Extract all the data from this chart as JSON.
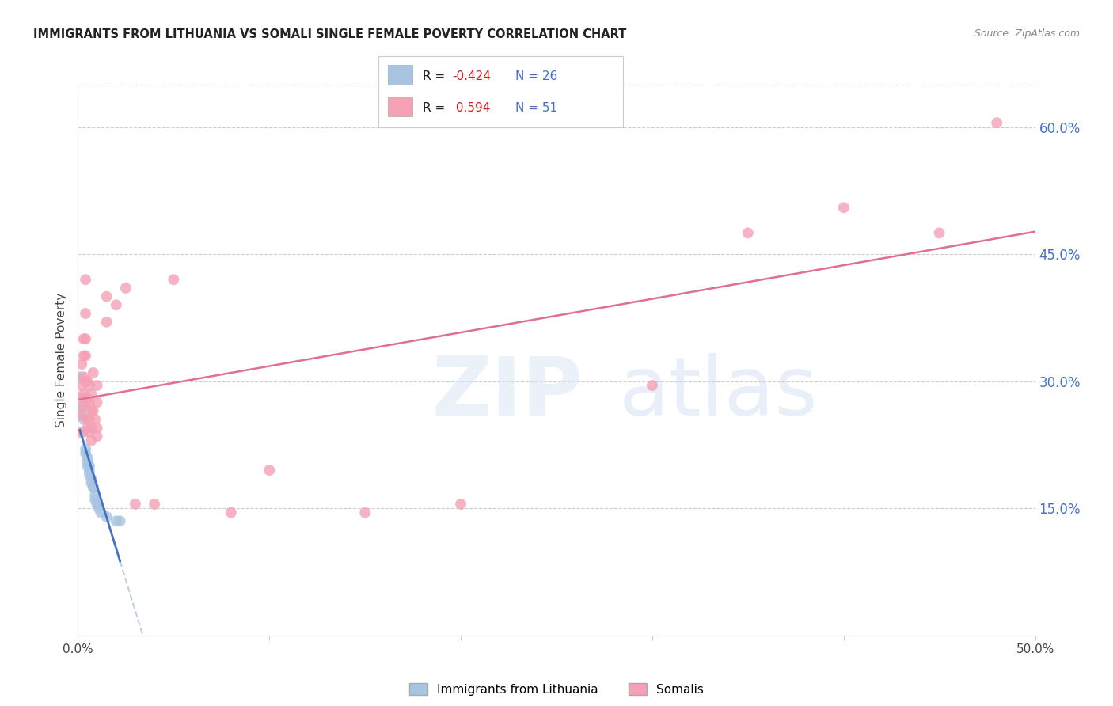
{
  "title": "IMMIGRANTS FROM LITHUANIA VS SOMALI SINGLE FEMALE POVERTY CORRELATION CHART",
  "source": "Source: ZipAtlas.com",
  "ylabel": "Single Female Poverty",
  "xlim": [
    0.0,
    50.0
  ],
  "ylim": [
    0.0,
    65.0
  ],
  "ytick_values": [
    15.0,
    30.0,
    45.0,
    60.0
  ],
  "xtick_values": [
    0.0,
    10.0,
    20.0,
    30.0,
    40.0,
    50.0
  ],
  "legend_label1": "Immigrants from Lithuania",
  "legend_label2": "Somalis",
  "R1": -0.424,
  "N1": 26,
  "R2": 0.594,
  "N2": 51,
  "color_blue": "#a8c4e0",
  "color_pink": "#f4a0b5",
  "line_blue": "#4472c4",
  "line_pink": "#e07090",
  "right_tick_color": "#4472c4",
  "grid_color": "#cccccc",
  "title_color": "#222222",
  "source_color": "#888888",
  "background_color": "#ffffff",
  "blue_scatter": [
    [
      0.1,
      30.5
    ],
    [
      0.2,
      27.0
    ],
    [
      0.2,
      26.0
    ],
    [
      0.3,
      25.5
    ],
    [
      0.3,
      24.0
    ],
    [
      0.4,
      22.0
    ],
    [
      0.4,
      21.5
    ],
    [
      0.5,
      21.0
    ],
    [
      0.5,
      20.5
    ],
    [
      0.5,
      20.0
    ],
    [
      0.6,
      20.0
    ],
    [
      0.6,
      19.5
    ],
    [
      0.6,
      19.0
    ],
    [
      0.7,
      18.5
    ],
    [
      0.7,
      18.0
    ],
    [
      0.8,
      17.5
    ],
    [
      0.8,
      17.5
    ],
    [
      0.9,
      16.5
    ],
    [
      0.9,
      16.0
    ],
    [
      1.0,
      15.5
    ],
    [
      1.0,
      15.5
    ],
    [
      1.1,
      15.0
    ],
    [
      1.2,
      14.5
    ],
    [
      1.5,
      14.0
    ],
    [
      2.0,
      13.5
    ],
    [
      2.2,
      13.5
    ]
  ],
  "pink_scatter": [
    [
      0.1,
      24.0
    ],
    [
      0.1,
      26.0
    ],
    [
      0.2,
      32.0
    ],
    [
      0.2,
      29.5
    ],
    [
      0.2,
      28.0
    ],
    [
      0.3,
      35.0
    ],
    [
      0.3,
      33.0
    ],
    [
      0.3,
      30.5
    ],
    [
      0.3,
      28.5
    ],
    [
      0.3,
      27.0
    ],
    [
      0.4,
      42.0
    ],
    [
      0.4,
      38.0
    ],
    [
      0.4,
      35.0
    ],
    [
      0.4,
      33.0
    ],
    [
      0.4,
      30.0
    ],
    [
      0.4,
      27.5
    ],
    [
      0.5,
      30.0
    ],
    [
      0.5,
      28.0
    ],
    [
      0.5,
      25.5
    ],
    [
      0.5,
      24.5
    ],
    [
      0.6,
      29.5
    ],
    [
      0.6,
      27.5
    ],
    [
      0.6,
      25.5
    ],
    [
      0.6,
      24.0
    ],
    [
      0.7,
      28.5
    ],
    [
      0.7,
      26.5
    ],
    [
      0.7,
      24.5
    ],
    [
      0.7,
      23.0
    ],
    [
      0.8,
      31.0
    ],
    [
      0.8,
      26.5
    ],
    [
      0.9,
      25.5
    ],
    [
      1.0,
      29.5
    ],
    [
      1.0,
      27.5
    ],
    [
      1.0,
      24.5
    ],
    [
      1.0,
      23.5
    ],
    [
      1.5,
      40.0
    ],
    [
      1.5,
      37.0
    ],
    [
      2.0,
      39.0
    ],
    [
      2.5,
      41.0
    ],
    [
      3.0,
      15.5
    ],
    [
      4.0,
      15.5
    ],
    [
      5.0,
      42.0
    ],
    [
      8.0,
      14.5
    ],
    [
      10.0,
      19.5
    ],
    [
      15.0,
      14.5
    ],
    [
      20.0,
      15.5
    ],
    [
      30.0,
      29.5
    ],
    [
      35.0,
      47.5
    ],
    [
      40.0,
      50.5
    ],
    [
      45.0,
      47.5
    ],
    [
      48.0,
      60.5
    ]
  ]
}
